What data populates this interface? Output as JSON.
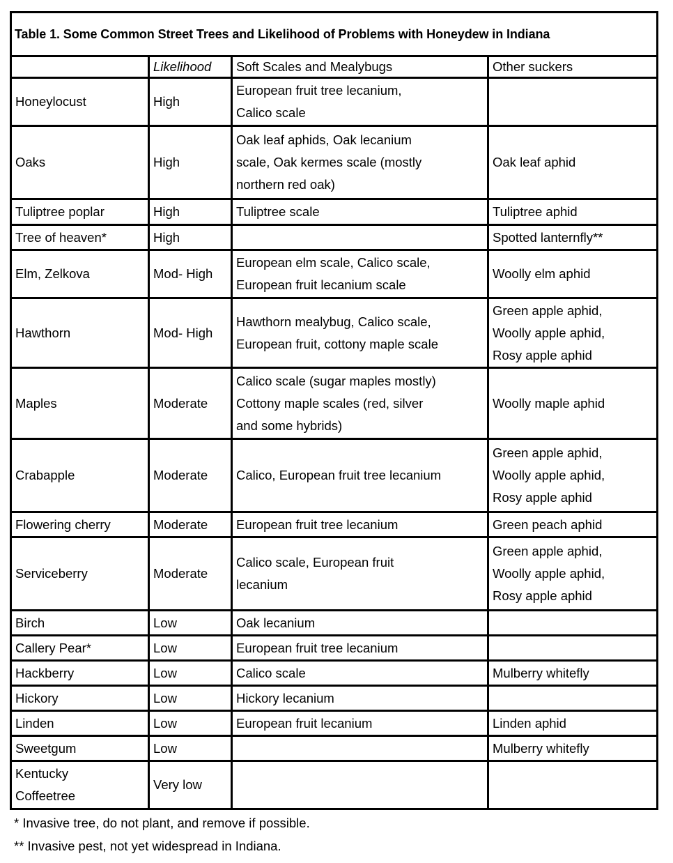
{
  "title": "Table 1. Some Common Street Trees and Likelihood of Problems with Honeydew in Indiana",
  "headers": {
    "tree": "",
    "likelihood": "Likelihood",
    "soft_scales": "Soft Scales and Mealybugs",
    "other_suckers": "Other suckers"
  },
  "rows": [
    {
      "tree": "Honeylocust",
      "likelihood": "High",
      "soft_scales": "European fruit tree lecanium,\nCalico scale",
      "other_suckers": ""
    },
    {
      "tree": "Oaks",
      "likelihood": "High",
      "soft_scales": "Oak leaf aphids, Oak lecanium\nscale, Oak kermes scale (mostly\nnorthern red oak)",
      "other_suckers": "Oak leaf aphid"
    },
    {
      "tree": "Tuliptree poplar",
      "likelihood": "High",
      "soft_scales": "Tuliptree scale",
      "other_suckers": "Tuliptree aphid"
    },
    {
      "tree": "Tree of heaven*",
      "likelihood": "High",
      "soft_scales": "",
      "other_suckers": "Spotted lanternfly**"
    },
    {
      "tree": "Elm, Zelkova",
      "likelihood": "Mod- High",
      "soft_scales": "European elm scale, Calico scale,\nEuropean fruit lecanium scale",
      "other_suckers": "Woolly elm aphid"
    },
    {
      "tree": "Hawthorn",
      "likelihood": "Mod- High",
      "soft_scales": "Hawthorn mealybug, Calico scale,\nEuropean fruit, cottony maple scale",
      "other_suckers": "Green apple aphid,\nWoolly apple aphid,\nRosy apple aphid"
    },
    {
      "tree": "Maples",
      "likelihood": "Moderate",
      "soft_scales": "Calico scale (sugar maples mostly)\nCottony maple scales (red, silver\nand some hybrids)",
      "other_suckers": "Woolly maple aphid"
    },
    {
      "tree": "Crabapple",
      "likelihood": "Moderate",
      "soft_scales": "Calico, European fruit tree lecanium",
      "other_suckers": "Green apple aphid,\nWoolly apple aphid,\nRosy apple aphid"
    },
    {
      "tree": "Flowering cherry",
      "likelihood": "Moderate",
      "soft_scales": "European fruit tree lecanium",
      "other_suckers": "Green peach aphid"
    },
    {
      "tree": "Serviceberry",
      "likelihood": "Moderate",
      "soft_scales": "Calico scale, European fruit\nlecanium",
      "other_suckers": "Green apple aphid,\nWoolly apple aphid,\nRosy apple aphid"
    },
    {
      "tree": "Birch",
      "likelihood": "Low",
      "soft_scales": "Oak lecanium",
      "other_suckers": ""
    },
    {
      "tree": "Callery Pear*",
      "likelihood": "Low",
      "soft_scales": "European fruit tree lecanium",
      "other_suckers": ""
    },
    {
      "tree": "Hackberry",
      "likelihood": "Low",
      "soft_scales": "Calico scale",
      "other_suckers": "Mulberry whitefly"
    },
    {
      "tree": "Hickory",
      "likelihood": "Low",
      "soft_scales": "Hickory lecanium",
      "other_suckers": ""
    },
    {
      "tree": "Linden",
      "likelihood": "Low",
      "soft_scales": "European fruit lecanium",
      "other_suckers": "Linden aphid"
    },
    {
      "tree": "Sweetgum",
      "likelihood": "Low",
      "soft_scales": "",
      "other_suckers": "Mulberry whitefly"
    },
    {
      "tree": "Kentucky\nCoffeetree",
      "likelihood": "Very low",
      "soft_scales": "",
      "other_suckers": ""
    }
  ],
  "footnotes": [
    "* Invasive tree, do not plant, and remove if possible.",
    "** Invasive pest, not yet widespread in Indiana."
  ]
}
